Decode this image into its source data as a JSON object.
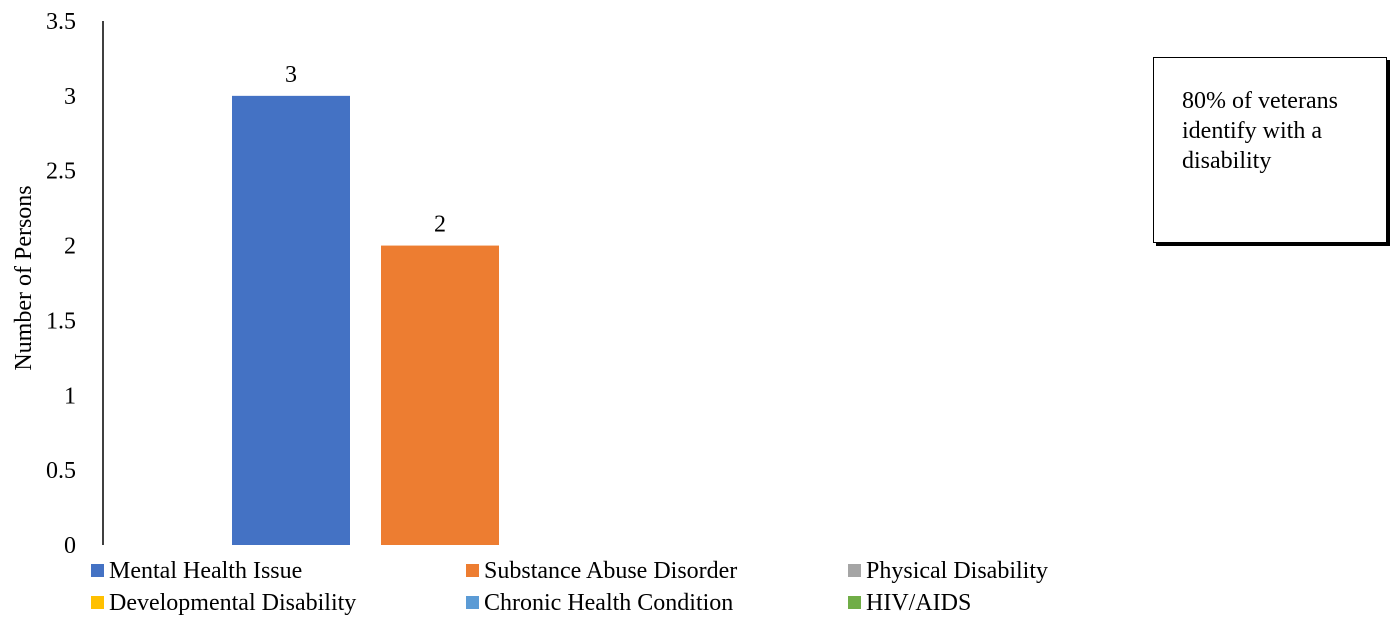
{
  "chart_data": {
    "type": "bar",
    "title": "",
    "xlabel": "",
    "ylabel": "Number of Persons",
    "ylim": [
      0,
      3.5
    ],
    "yticks": [
      "0",
      "0.5",
      "1",
      "1.5",
      "2",
      "2.5",
      "3",
      "3.5"
    ],
    "grid": false,
    "legend_position": "bottom",
    "series": [
      {
        "name": "Mental Health Issue",
        "value": 3,
        "color": "#4472C4"
      },
      {
        "name": "Substance Abuse Disorder",
        "value": 2,
        "color": "#ED7D31"
      },
      {
        "name": "Physical Disability",
        "value": 0,
        "color": "#A5A5A5"
      },
      {
        "name": "Developmental Disability",
        "value": 0,
        "color": "#FFC000"
      },
      {
        "name": "Chronic Health Condition",
        "value": 0,
        "color": "#5B9BD5"
      },
      {
        "name": "HIV/AIDS",
        "value": 0,
        "color": "#70AD47"
      }
    ],
    "data_labels": [
      "3",
      "2"
    ],
    "annotation": "80% of veterans identify with a disability"
  }
}
